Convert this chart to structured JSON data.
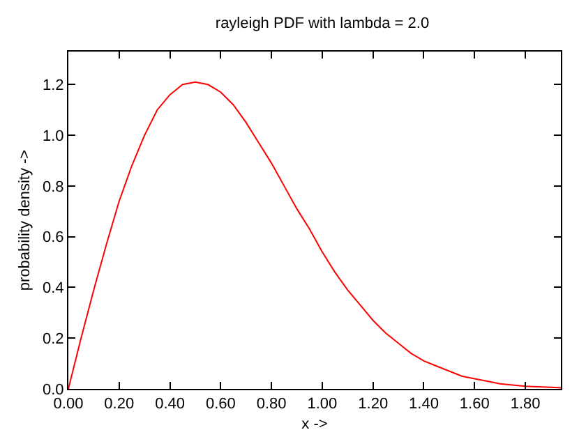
{
  "chart_data": {
    "type": "line",
    "title": "rayleigh PDF with lambda = 2.0",
    "xlabel": "x ->",
    "ylabel": "probability density ->",
    "x": [
      0,
      0.05,
      0.1,
      0.15,
      0.2,
      0.25,
      0.3,
      0.35,
      0.4,
      0.45,
      0.5,
      0.55,
      0.6,
      0.65,
      0.7,
      0.75,
      0.8,
      0.85,
      0.9,
      0.95,
      1.0,
      1.05,
      1.1,
      1.15,
      1.2,
      1.25,
      1.3,
      1.35,
      1.4,
      1.45,
      1.5,
      1.55,
      1.6,
      1.65,
      1.7,
      1.75,
      1.8,
      1.85,
      1.9,
      1.94
    ],
    "series": [
      {
        "color": "#ff0000",
        "values": [
          0,
          0.2,
          0.39,
          0.57,
          0.74,
          0.88,
          1.0,
          1.1,
          1.16,
          1.2,
          1.21,
          1.2,
          1.17,
          1.12,
          1.05,
          0.97,
          0.89,
          0.8,
          0.71,
          0.63,
          0.54,
          0.46,
          0.39,
          0.33,
          0.27,
          0.22,
          0.18,
          0.14,
          0.11,
          0.09,
          0.07,
          0.05,
          0.04,
          0.03,
          0.02,
          0.015,
          0.01,
          0.008,
          0.006,
          0.004
        ]
      }
    ],
    "xlim": [
      0,
      1.94
    ],
    "xticks": [
      {
        "value": 0,
        "label": "0.00"
      },
      {
        "value": 0.2,
        "label": "0.20"
      },
      {
        "value": 0.4,
        "label": "0.40"
      },
      {
        "value": 0.6,
        "label": "0.60"
      },
      {
        "value": 0.8,
        "label": "0.80"
      },
      {
        "value": 1.0,
        "label": "1.00"
      },
      {
        "value": 1.2,
        "label": "1.20"
      },
      {
        "value": 1.4,
        "label": "1.40"
      },
      {
        "value": 1.6,
        "label": "1.60"
      },
      {
        "value": 1.8,
        "label": "1.80"
      }
    ],
    "ylim": [
      0,
      1.33
    ],
    "yticks": [
      {
        "value": 0,
        "label": "0.0"
      },
      {
        "value": 0.2,
        "label": "0.2"
      },
      {
        "value": 0.4,
        "label": "0.4"
      },
      {
        "value": 0.6,
        "label": "0.6"
      },
      {
        "value": 0.8,
        "label": "0.8"
      },
      {
        "value": 1.0,
        "label": "1.0"
      },
      {
        "value": 1.2,
        "label": "1.2"
      }
    ],
    "marker": "none",
    "line_style": "solid"
  }
}
